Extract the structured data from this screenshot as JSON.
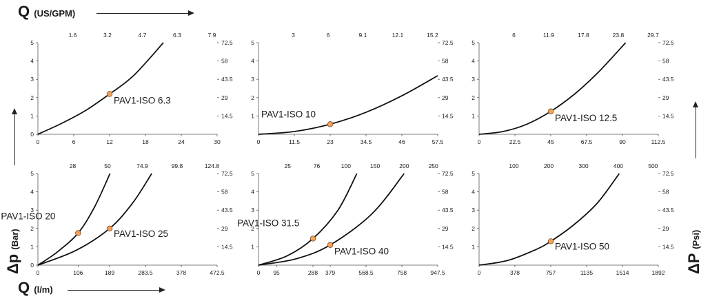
{
  "labels": {
    "top_q": "Q",
    "top_q_unit": "(US/GPM)",
    "bottom_q": "Q",
    "bottom_q_unit": "(l/m)",
    "left_dp": "Δp",
    "left_dp_unit": "(Bar)",
    "right_dp": "ΔP",
    "right_dp_unit": "(Psi)"
  },
  "colors": {
    "curve": "#111111",
    "marker": "#f2a25a",
    "axis": "#555555"
  },
  "chart_data": [
    {
      "type": "line",
      "x_bottom_ticks": [
        "0",
        "6",
        "12",
        "18",
        "24",
        "30"
      ],
      "x_top_ticks": [
        "1.6",
        "3.2",
        "4.7",
        "6.3",
        "7.9"
      ],
      "y_left_ticks": [
        "0",
        "1",
        "2",
        "3",
        "4",
        "5"
      ],
      "y_right_ticks": [
        "14.5",
        "29",
        "43.5",
        "58",
        "72.5"
      ],
      "xlim": [
        0,
        30
      ],
      "ylim": [
        0,
        5
      ],
      "series": [
        {
          "name": "PAV1-ISO 6.3",
          "x": [
            0,
            4,
            8,
            12,
            16,
            21
          ],
          "y": [
            0,
            0.6,
            1.3,
            2.2,
            3.2,
            5
          ],
          "marker": [
            12,
            2.2
          ]
        }
      ]
    },
    {
      "type": "line",
      "x_bottom_ticks": [
        "0",
        "11.5",
        "23",
        "34.5",
        "46",
        "57.5"
      ],
      "x_top_ticks": [
        "3",
        "6",
        "9.1",
        "12.1",
        "15.2"
      ],
      "y_left_ticks": [
        "1",
        "2",
        "3",
        "4",
        "5"
      ],
      "y_right_ticks": [
        "14.5",
        "29",
        "43.5",
        "58",
        "72.5"
      ],
      "xlim": [
        0,
        57.5
      ],
      "ylim": [
        0,
        5
      ],
      "series": [
        {
          "name": "PAV1-ISO 10",
          "x": [
            0,
            11.5,
            23,
            34.5,
            46,
            57.5
          ],
          "y": [
            0,
            0.15,
            0.55,
            1.2,
            2.1,
            3.2
          ],
          "marker": [
            23,
            0.55
          ]
        }
      ]
    },
    {
      "type": "line",
      "x_bottom_ticks": [
        "0",
        "22.5",
        "45",
        "67.5",
        "90",
        "112.5"
      ],
      "x_top_ticks": [
        "6",
        "11.9",
        "17.8",
        "23.8",
        "29.7"
      ],
      "y_left_ticks": [
        "1",
        "2",
        "3",
        "4",
        "5"
      ],
      "y_right_ticks": [
        "14.5",
        "29",
        "43.5",
        "58",
        "72.5"
      ],
      "xlim": [
        0,
        112.5
      ],
      "ylim": [
        0,
        5
      ],
      "series": [
        {
          "name": "PAV1-ISO 12.5",
          "x": [
            0,
            15,
            30,
            45,
            60,
            75,
            92
          ],
          "y": [
            0,
            0.15,
            0.55,
            1.25,
            2.2,
            3.4,
            5
          ],
          "marker": [
            45,
            1.25
          ]
        }
      ]
    },
    {
      "type": "line",
      "x_bottom_ticks": [
        "0",
        "106",
        "189",
        "283.5",
        "378",
        "472.5"
      ],
      "x_top_ticks": [
        "28",
        "50",
        "74.9",
        "99.8",
        "124.8"
      ],
      "y_left_ticks": [
        "0",
        "1",
        "2",
        "3",
        "4",
        "5"
      ],
      "y_right_ticks": [
        "14.5",
        "29",
        "43.5",
        "58",
        "72.5"
      ],
      "xlim": [
        0,
        472.5
      ],
      "ylim": [
        0,
        5
      ],
      "series": [
        {
          "name": "PAV1-ISO 20",
          "x": [
            0,
            50,
            106,
            150,
            190
          ],
          "y": [
            0,
            0.7,
            1.75,
            3.2,
            5
          ],
          "marker": [
            106,
            1.75
          ]
        },
        {
          "name": "PAV1-ISO 25",
          "x": [
            0,
            100,
            189,
            250,
            300
          ],
          "y": [
            0,
            0.8,
            2.0,
            3.4,
            5
          ],
          "marker": [
            189,
            2.0
          ]
        }
      ]
    },
    {
      "type": "line",
      "x_bottom_ticks": [
        "0",
        "95",
        "288",
        "379",
        "568.5",
        "758",
        "947.5"
      ],
      "x_top_ticks": [
        "25",
        "76",
        "100",
        "150",
        "200",
        "250"
      ],
      "y_left_ticks": [
        "1",
        "2",
        "3",
        "4",
        "5"
      ],
      "y_right_ticks": [
        "14.5",
        "29",
        "43.5",
        "58",
        "72.5"
      ],
      "xlim": [
        0,
        947.5
      ],
      "ylim": [
        0,
        5
      ],
      "series": [
        {
          "name": "PAV1-ISO 31.5",
          "x": [
            0,
            150,
            288,
            420,
            520
          ],
          "y": [
            0,
            0.5,
            1.45,
            3.0,
            5
          ],
          "marker": [
            288,
            1.45
          ]
        },
        {
          "name": "PAV1-ISO 40",
          "x": [
            0,
            200,
            379,
            600,
            770
          ],
          "y": [
            0,
            0.35,
            1.1,
            2.8,
            5
          ],
          "marker": [
            379,
            1.1
          ]
        }
      ]
    },
    {
      "type": "line",
      "x_bottom_ticks": [
        "0",
        "378",
        "757",
        "1135",
        "1514",
        "1892"
      ],
      "x_top_ticks": [
        "100",
        "200",
        "300",
        "400",
        "500"
      ],
      "y_left_ticks": [
        "1",
        "2",
        "3",
        "4",
        "5"
      ],
      "y_right_ticks": [
        "14.5",
        "29",
        "43.5",
        "58",
        "72.5"
      ],
      "xlim": [
        0,
        1892
      ],
      "ylim": [
        0,
        5
      ],
      "series": [
        {
          "name": "PAV1-ISO 50",
          "x": [
            0,
            300,
            600,
            757,
            1000,
            1250,
            1480
          ],
          "y": [
            0,
            0.25,
            0.85,
            1.3,
            2.2,
            3.4,
            5
          ],
          "marker": [
            757,
            1.3
          ]
        }
      ]
    }
  ]
}
